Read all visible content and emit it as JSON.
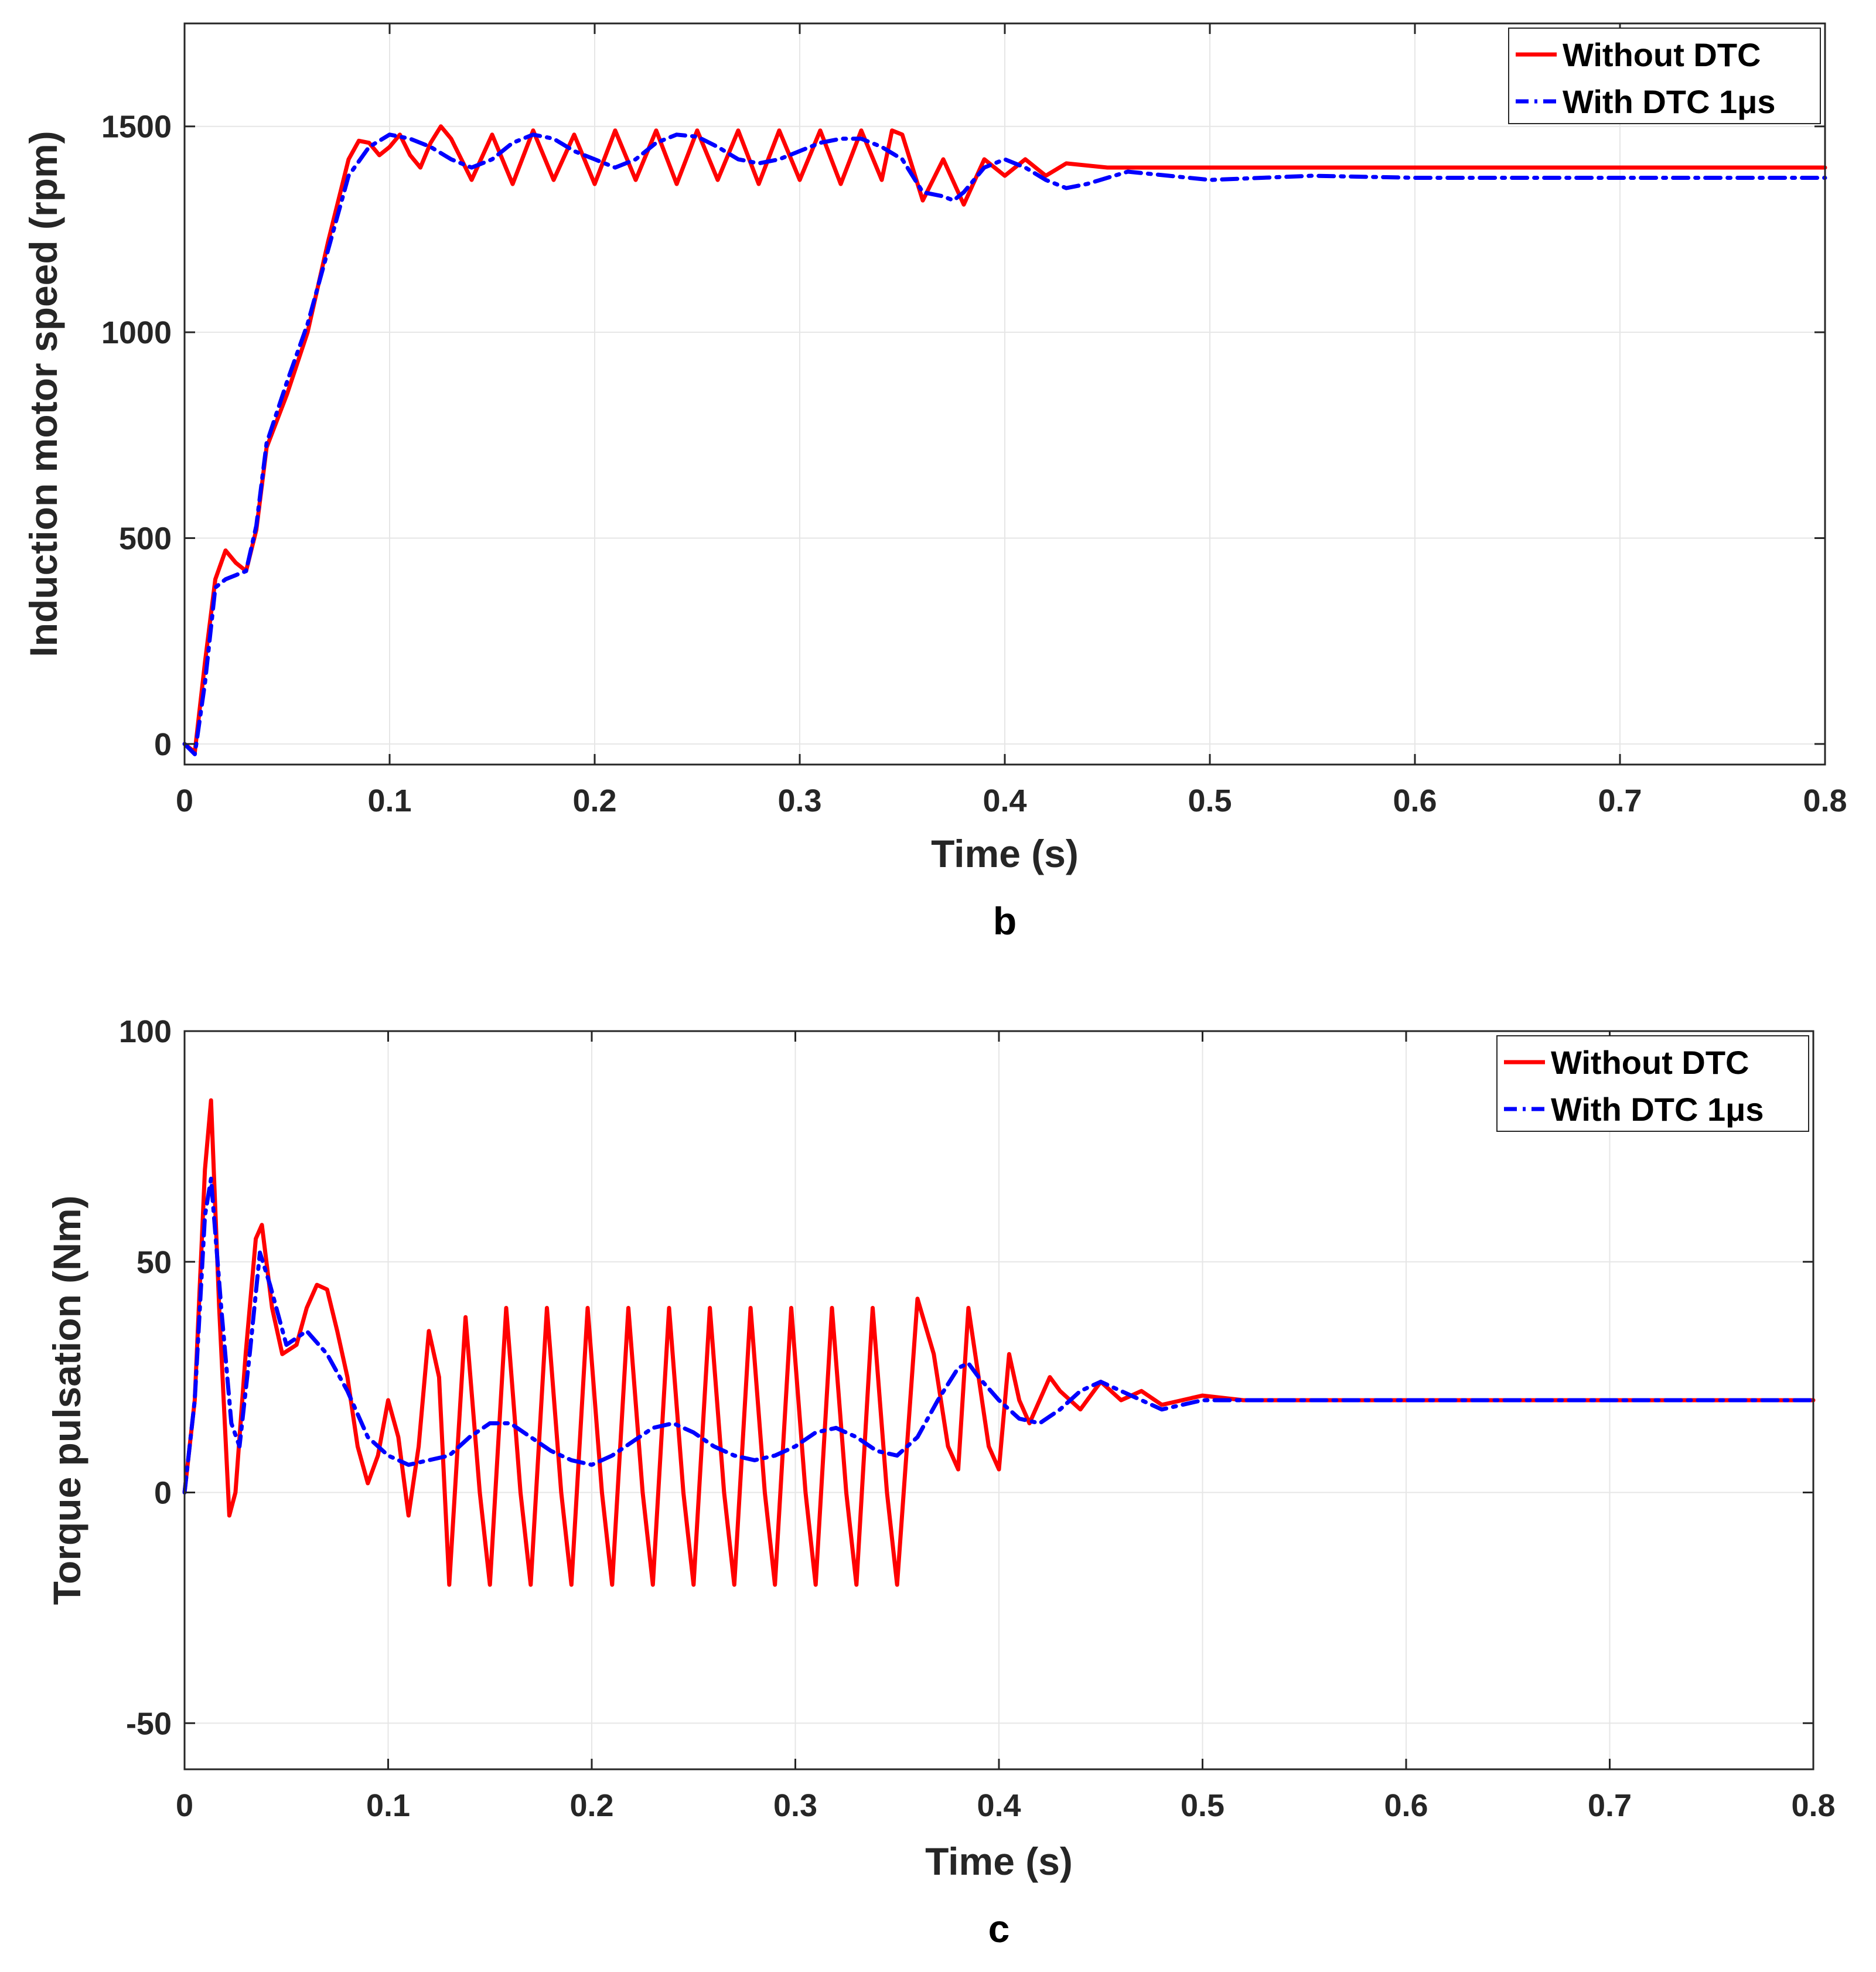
{
  "colors": {
    "red": "#ff0000",
    "blue": "#0000ff"
  },
  "chart_data": [
    {
      "type": "line",
      "panel_caption": "b",
      "title": "",
      "xlabel": "Time (s)",
      "ylabel": "Induction motor speed (rpm)",
      "xlim": [
        0,
        0.8
      ],
      "ylim": [
        -50,
        1750
      ],
      "xticks": [
        0,
        0.1,
        0.2,
        0.3,
        0.4,
        0.5,
        0.6,
        0.7,
        0.8
      ],
      "yticks": [
        0,
        500,
        1000,
        1500
      ],
      "xtick_labels": [
        "0",
        "0.1",
        "0.2",
        "0.3",
        "0.4",
        "0.5",
        "0.6",
        "0.7",
        "0.8"
      ],
      "ytick_labels": [
        "0",
        "500",
        "1000",
        "1500"
      ],
      "grid": true,
      "legend_position": "top-right",
      "series": [
        {
          "name": "Without DTC",
          "style": "solid",
          "color": "#ff0000",
          "x": [
            0,
            0.005,
            0.01,
            0.015,
            0.02,
            0.025,
            0.03,
            0.035,
            0.04,
            0.05,
            0.06,
            0.07,
            0.08,
            0.085,
            0.09,
            0.095,
            0.1,
            0.105,
            0.11,
            0.115,
            0.12,
            0.125,
            0.13,
            0.14,
            0.15,
            0.16,
            0.17,
            0.18,
            0.19,
            0.2,
            0.21,
            0.22,
            0.23,
            0.24,
            0.25,
            0.26,
            0.27,
            0.28,
            0.29,
            0.3,
            0.31,
            0.32,
            0.33,
            0.34,
            0.345,
            0.35,
            0.36,
            0.37,
            0.38,
            0.39,
            0.4,
            0.41,
            0.42,
            0.43,
            0.45,
            0.47,
            0.5,
            0.55,
            0.6,
            0.65,
            0.7,
            0.75,
            0.8
          ],
          "y": [
            0,
            -20,
            200,
            400,
            470,
            440,
            420,
            520,
            720,
            850,
            1000,
            1220,
            1420,
            1465,
            1460,
            1430,
            1450,
            1480,
            1430,
            1400,
            1460,
            1500,
            1470,
            1370,
            1480,
            1360,
            1490,
            1370,
            1480,
            1360,
            1490,
            1370,
            1490,
            1360,
            1490,
            1370,
            1490,
            1360,
            1490,
            1370,
            1490,
            1360,
            1490,
            1370,
            1490,
            1480,
            1320,
            1420,
            1310,
            1420,
            1380,
            1420,
            1380,
            1410,
            1400,
            1400,
            1400,
            1400,
            1400,
            1400,
            1400,
            1400,
            1400
          ]
        },
        {
          "name": "With DTC 1μs",
          "style": "dashdot",
          "color": "#0000ff",
          "x": [
            0,
            0.005,
            0.01,
            0.015,
            0.02,
            0.025,
            0.03,
            0.035,
            0.04,
            0.05,
            0.06,
            0.07,
            0.08,
            0.09,
            0.1,
            0.11,
            0.12,
            0.13,
            0.14,
            0.15,
            0.16,
            0.17,
            0.18,
            0.19,
            0.2,
            0.21,
            0.22,
            0.23,
            0.24,
            0.25,
            0.26,
            0.27,
            0.28,
            0.29,
            0.3,
            0.31,
            0.32,
            0.33,
            0.34,
            0.35,
            0.36,
            0.37,
            0.375,
            0.38,
            0.39,
            0.4,
            0.41,
            0.42,
            0.43,
            0.44,
            0.46,
            0.48,
            0.5,
            0.55,
            0.6,
            0.65,
            0.7,
            0.75,
            0.8
          ],
          "y": [
            0,
            -25,
            150,
            380,
            400,
            410,
            420,
            530,
            730,
            880,
            1020,
            1200,
            1380,
            1450,
            1480,
            1470,
            1450,
            1420,
            1400,
            1420,
            1460,
            1480,
            1470,
            1440,
            1420,
            1400,
            1420,
            1460,
            1480,
            1475,
            1450,
            1420,
            1410,
            1420,
            1440,
            1460,
            1470,
            1470,
            1450,
            1420,
            1340,
            1330,
            1320,
            1340,
            1400,
            1420,
            1400,
            1370,
            1350,
            1360,
            1390,
            1380,
            1370,
            1380,
            1375,
            1375,
            1375,
            1375,
            1375
          ]
        }
      ]
    },
    {
      "type": "line",
      "panel_caption": "c",
      "title": "",
      "xlabel": "Time (s)",
      "ylabel": "Torque pulsation (Nm)",
      "xlim": [
        0,
        0.8
      ],
      "ylim": [
        -60,
        100
      ],
      "xticks": [
        0,
        0.1,
        0.2,
        0.3,
        0.4,
        0.5,
        0.6,
        0.7,
        0.8
      ],
      "yticks": [
        -50,
        0,
        50,
        100
      ],
      "xtick_labels": [
        "0",
        "0.1",
        "0.2",
        "0.3",
        "0.4",
        "0.5",
        "0.6",
        "0.7",
        "0.8"
      ],
      "ytick_labels": [
        "-50",
        "0",
        "50",
        "100"
      ],
      "grid": true,
      "legend_position": "top-right",
      "series": [
        {
          "name": "Without DTC",
          "style": "solid",
          "color": "#ff0000",
          "x": [
            0,
            0.005,
            0.01,
            0.013,
            0.017,
            0.022,
            0.025,
            0.03,
            0.035,
            0.038,
            0.043,
            0.048,
            0.055,
            0.06,
            0.065,
            0.07,
            0.075,
            0.08,
            0.085,
            0.09,
            0.095,
            0.1,
            0.105,
            0.11,
            0.115,
            0.12,
            0.125,
            0.13,
            0.138,
            0.145,
            0.15,
            0.158,
            0.165,
            0.17,
            0.178,
            0.185,
            0.19,
            0.198,
            0.205,
            0.21,
            0.218,
            0.225,
            0.23,
            0.238,
            0.245,
            0.25,
            0.258,
            0.265,
            0.27,
            0.278,
            0.285,
            0.29,
            0.298,
            0.305,
            0.31,
            0.318,
            0.325,
            0.33,
            0.338,
            0.345,
            0.35,
            0.36,
            0.368,
            0.375,
            0.38,
            0.385,
            0.39,
            0.395,
            0.4,
            0.405,
            0.41,
            0.415,
            0.42,
            0.425,
            0.43,
            0.44,
            0.45,
            0.46,
            0.47,
            0.48,
            0.5,
            0.52,
            0.55,
            0.6,
            0.65,
            0.7,
            0.75,
            0.8
          ],
          "y": [
            0,
            20,
            70,
            85,
            40,
            -5,
            0,
            30,
            55,
            58,
            40,
            30,
            32,
            40,
            45,
            44,
            35,
            25,
            10,
            2,
            8,
            20,
            12,
            -5,
            10,
            35,
            25,
            -20,
            38,
            0,
            -20,
            40,
            0,
            -20,
            40,
            0,
            -20,
            40,
            0,
            -20,
            40,
            0,
            -20,
            40,
            0,
            -20,
            40,
            0,
            -20,
            40,
            0,
            -20,
            40,
            0,
            -20,
            40,
            0,
            -20,
            40,
            0,
            -20,
            42,
            30,
            10,
            5,
            40,
            25,
            10,
            5,
            30,
            20,
            15,
            20,
            25,
            22,
            18,
            24,
            20,
            22,
            19,
            21,
            20,
            20,
            20,
            20,
            20,
            20,
            20
          ]
        },
        {
          "name": "With DTC 1μs",
          "style": "dashdot",
          "color": "#0000ff",
          "x": [
            0,
            0.005,
            0.01,
            0.013,
            0.018,
            0.023,
            0.027,
            0.032,
            0.037,
            0.042,
            0.05,
            0.06,
            0.07,
            0.08,
            0.09,
            0.1,
            0.11,
            0.12,
            0.13,
            0.14,
            0.15,
            0.16,
            0.17,
            0.18,
            0.19,
            0.2,
            0.21,
            0.22,
            0.23,
            0.24,
            0.25,
            0.26,
            0.27,
            0.28,
            0.29,
            0.3,
            0.31,
            0.32,
            0.33,
            0.34,
            0.35,
            0.36,
            0.37,
            0.38,
            0.385,
            0.39,
            0.4,
            0.41,
            0.42,
            0.43,
            0.44,
            0.45,
            0.46,
            0.47,
            0.48,
            0.5,
            0.52,
            0.55,
            0.6,
            0.65,
            0.7,
            0.75,
            0.8
          ],
          "y": [
            0,
            20,
            60,
            68,
            40,
            15,
            10,
            30,
            52,
            45,
            32,
            35,
            30,
            22,
            12,
            8,
            6,
            7,
            8,
            12,
            15,
            15,
            12,
            9,
            7,
            6,
            8,
            11,
            14,
            15,
            13,
            10,
            8,
            7,
            8,
            10,
            13,
            14,
            12,
            9,
            8,
            12,
            20,
            27,
            28,
            25,
            20,
            16,
            15,
            18,
            22,
            24,
            22,
            20,
            18,
            20,
            20,
            20,
            20,
            20,
            20,
            20,
            20
          ]
        }
      ]
    }
  ]
}
